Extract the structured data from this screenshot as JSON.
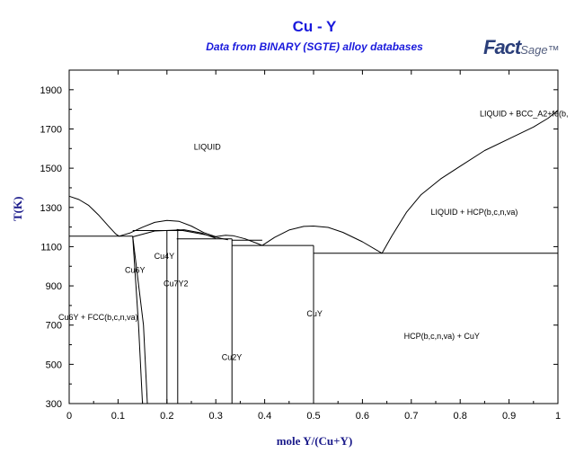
{
  "title": "Cu - Y",
  "subtitle": "Data from BINARY (SGTE) alloy databases",
  "logo": {
    "main": "FactSage",
    "first": "Fact",
    "second": "Sage",
    "tm": "™"
  },
  "chart_data": {
    "type": "line",
    "xlabel": "mole Y/(Cu+Y)",
    "ylabel": "T(K)",
    "xlim": [
      0,
      1
    ],
    "ylim": [
      300,
      2000
    ],
    "x_ticks": [
      0,
      0.1,
      0.2,
      0.3,
      0.4,
      0.5,
      0.6,
      0.7,
      0.8,
      0.9,
      1
    ],
    "x_tick_labels": [
      "0",
      "0.1",
      "0.2",
      "0.3",
      "0.4",
      "0.5",
      "0.6",
      "0.7",
      "0.8",
      "0.9",
      "1"
    ],
    "y_ticks": [
      300,
      500,
      700,
      900,
      1100,
      1300,
      1500,
      1700,
      1900
    ],
    "y_tick_labels": [
      "300",
      "500",
      "700",
      "900",
      "1100",
      "1300",
      "1500",
      "1700",
      "1900"
    ],
    "grid": false,
    "series": [
      {
        "points": [
          [
            0,
            1357
          ],
          [
            0.02,
            1340
          ],
          [
            0.04,
            1310
          ],
          [
            0.06,
            1262
          ],
          [
            0.08,
            1206
          ],
          [
            0.095,
            1165
          ],
          [
            0.102,
            1153
          ]
        ]
      },
      {
        "points": [
          [
            0.102,
            1153
          ],
          [
            0.125,
            1170
          ],
          [
            0.15,
            1199
          ],
          [
            0.175,
            1224
          ],
          [
            0.2,
            1234
          ],
          [
            0.225,
            1229
          ],
          [
            0.25,
            1205
          ],
          [
            0.275,
            1172
          ],
          [
            0.3,
            1151
          ],
          [
            0.32,
            1158
          ],
          [
            0.335,
            1156
          ],
          [
            0.36,
            1140
          ],
          [
            0.385,
            1116
          ],
          [
            0.395,
            1106
          ]
        ]
      },
      {
        "points": [
          [
            0.395,
            1106
          ],
          [
            0.42,
            1147
          ],
          [
            0.45,
            1185
          ],
          [
            0.48,
            1203
          ],
          [
            0.5,
            1205
          ],
          [
            0.53,
            1198
          ],
          [
            0.56,
            1173
          ],
          [
            0.6,
            1125
          ],
          [
            0.64,
            1066
          ]
        ]
      },
      {
        "points": [
          [
            0.64,
            1066
          ],
          [
            0.66,
            1153
          ],
          [
            0.69,
            1275
          ],
          [
            0.72,
            1365
          ],
          [
            0.76,
            1445
          ],
          [
            0.8,
            1510
          ],
          [
            0.85,
            1590
          ],
          [
            0.9,
            1650
          ],
          [
            0.95,
            1710
          ],
          [
            0.98,
            1755
          ],
          [
            1.0,
            1795
          ]
        ]
      },
      {
        "points": [
          [
            0.13,
            1150
          ],
          [
            0.175,
            1180
          ],
          [
            0.235,
            1186
          ],
          [
            0.27,
            1170
          ],
          [
            0.3,
            1142
          ]
        ]
      },
      {
        "points": [
          [
            0.22,
            1188
          ],
          [
            0.28,
            1160
          ],
          [
            0.315,
            1140
          ],
          [
            0.325,
            1135
          ]
        ]
      },
      {
        "points": [
          [
            0,
            1153
          ],
          [
            0.13,
            1153
          ]
        ]
      },
      {
        "points": [
          [
            0.13,
            1182
          ],
          [
            0.235,
            1182
          ]
        ]
      },
      {
        "points": [
          [
            0.22,
            1140
          ],
          [
            0.333,
            1140
          ]
        ]
      },
      {
        "points": [
          [
            0.333,
            1133
          ],
          [
            0.395,
            1133
          ]
        ]
      },
      {
        "points": [
          [
            0.333,
            1106
          ],
          [
            0.5,
            1106
          ]
        ]
      },
      {
        "points": [
          [
            0.5,
            1066
          ],
          [
            1,
            1066
          ]
        ]
      },
      {
        "points": [
          [
            0.13,
            1153
          ],
          [
            0.142,
            700
          ],
          [
            0.15,
            300
          ]
        ]
      },
      {
        "points": [
          [
            0.13,
            1153
          ],
          [
            0.152,
            700
          ],
          [
            0.16,
            300
          ]
        ]
      },
      {
        "points": [
          [
            0.2,
            1182
          ],
          [
            0.2,
            300
          ]
        ]
      },
      {
        "points": [
          [
            0.222,
            1186
          ],
          [
            0.222,
            300
          ]
        ]
      },
      {
        "points": [
          [
            0.333,
            1140
          ],
          [
            0.333,
            300
          ]
        ]
      },
      {
        "points": [
          [
            0.5,
            1106
          ],
          [
            0.5,
            300
          ]
        ]
      }
    ],
    "annotations": [
      {
        "text": "LIQUID",
        "x": 0.255,
        "y": 1595
      },
      {
        "text": "LIQUID + BCC_A2+fe(b,",
        "x": 0.84,
        "y": 1765
      },
      {
        "text": "LIQUID + HCP(b,c,n,va)",
        "x": 0.74,
        "y": 1262
      },
      {
        "text": "Cu4Y",
        "x": 0.174,
        "y": 1038
      },
      {
        "text": "Cu6Y",
        "x": 0.114,
        "y": 966
      },
      {
        "text": "Cu7Y2",
        "x": 0.193,
        "y": 898
      },
      {
        "text": "Cu6Y + FCC(b,c,n,va)",
        "x": -0.022,
        "y": 726
      },
      {
        "text": "CuY",
        "x": 0.486,
        "y": 744
      },
      {
        "text": "HCP(b,c,n,va) + CuY",
        "x": 0.685,
        "y": 630
      },
      {
        "text": "Cu2Y",
        "x": 0.312,
        "y": 522
      }
    ]
  }
}
